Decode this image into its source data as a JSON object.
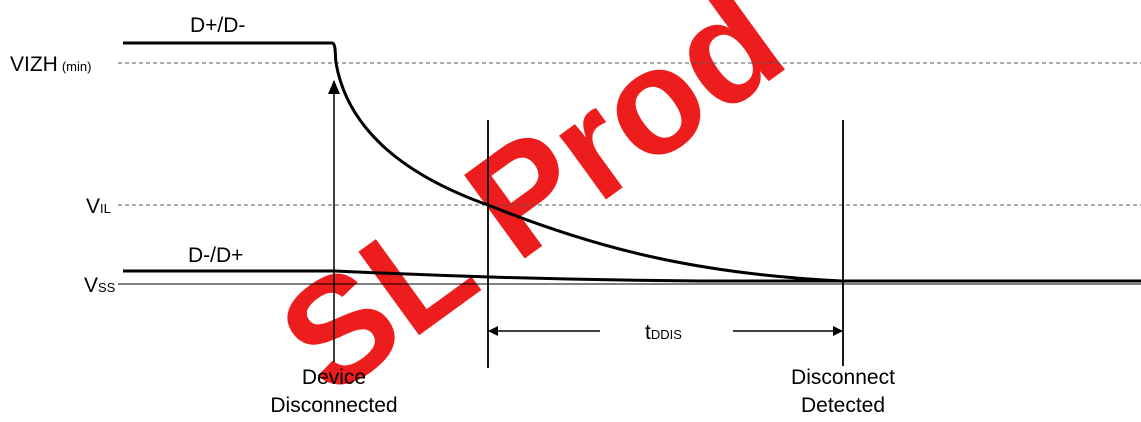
{
  "watermark": {
    "text": "SL Prod",
    "color": "#ee1111"
  },
  "levels": {
    "vizh": {
      "main": "VIZH",
      "sub": "(min)"
    },
    "vil": {
      "main": "V",
      "sub": "IL"
    },
    "vss": {
      "main": "V",
      "sub": "SS"
    }
  },
  "signals": {
    "upper": "D+/D-",
    "lower": "D-/D+"
  },
  "timing": {
    "main": "t",
    "sub": "DDIS"
  },
  "events": {
    "device_disconnected": {
      "line1": "Device",
      "line2": "Disconnected"
    },
    "disconnect_detected": {
      "line1": "Disconnect",
      "line2": "Detected"
    }
  }
}
